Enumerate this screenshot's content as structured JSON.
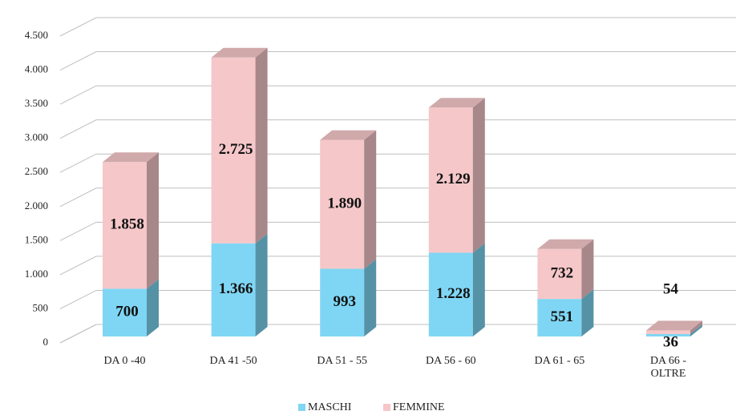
{
  "chart_data": {
    "type": "bar3d_stacked",
    "categories": [
      "DA 0 -40",
      "DA 41 -50",
      "DA 51 - 55",
      "DA 56 - 60",
      "DA 61 - 65",
      "DA 66 - OLTRE"
    ],
    "series": [
      {
        "name": "MASCHI",
        "color": "#7fd6f4",
        "values": [
          700,
          1366,
          993,
          1228,
          551,
          36
        ],
        "value_labels": [
          "700",
          "1.366",
          "993",
          "1.228",
          "551",
          "36"
        ]
      },
      {
        "name": "FEMMINE",
        "color": "#f5c7c9",
        "values": [
          1858,
          2725,
          1890,
          2129,
          732,
          54
        ],
        "value_labels": [
          "1.858",
          "2.725",
          "1.890",
          "2.129",
          "732",
          "54"
        ]
      }
    ],
    "ylim": [
      0,
      5000
    ],
    "yticks": [
      0,
      500,
      {
        "value": 1000,
        "label": "1.000"
      },
      {
        "value": 1500,
        "label": "1.500"
      },
      {
        "value": 2000,
        "label": "2.000"
      },
      {
        "value": 2500,
        "label": "2.500"
      },
      {
        "value": 3000,
        "label": "3.000"
      },
      {
        "value": 3500,
        "label": "3.500"
      },
      {
        "value": 4000,
        "label": "4.000"
      },
      {
        "value": 4500,
        "label": "4.500"
      }
    ],
    "grid": true,
    "legend": "bottom"
  }
}
